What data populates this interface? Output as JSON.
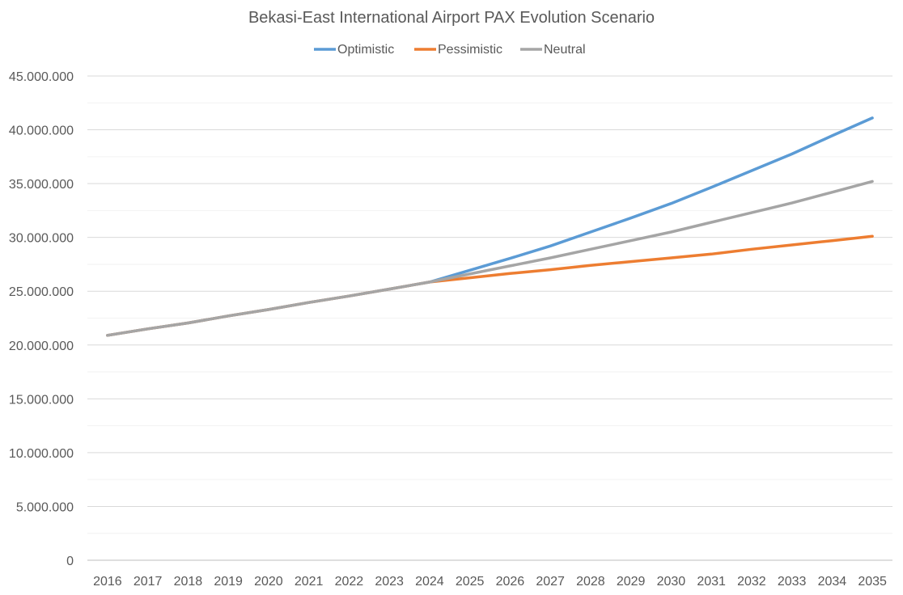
{
  "chart_data": {
    "type": "line",
    "title": "Bekasi-East International Airport PAX Evolution Scenario",
    "xlabel": "",
    "ylabel": "",
    "categories": [
      "2016",
      "2017",
      "2018",
      "2019",
      "2020",
      "2021",
      "2022",
      "2023",
      "2024",
      "2025",
      "2026",
      "2027",
      "2028",
      "2029",
      "2030",
      "2031",
      "2032",
      "2033",
      "2034",
      "2035"
    ],
    "ylim": [
      0,
      45000000
    ],
    "y_ticks": [
      0,
      5000000,
      10000000,
      15000000,
      20000000,
      25000000,
      30000000,
      35000000,
      40000000,
      45000000
    ],
    "y_tick_labels": [
      "0",
      "5.000.000",
      "10.000.000",
      "15.000.000",
      "20.000.000",
      "25.000.000",
      "30.000.000",
      "35.000.000",
      "40.000.000",
      "45.000.000"
    ],
    "grid": true,
    "legend_position": "top-center",
    "series": [
      {
        "name": "Optimistic",
        "color": "#5B9BD5",
        "values": [
          20900000,
          21500000,
          22050000,
          22700000,
          23300000,
          23950000,
          24550000,
          25200000,
          25850000,
          26950000,
          28050000,
          29200000,
          30500000,
          31800000,
          33150000,
          34650000,
          36200000,
          37750000,
          39450000,
          41100000
        ]
      },
      {
        "name": "Pessimistic",
        "color": "#ED7D31",
        "values": [
          20900000,
          21500000,
          22050000,
          22700000,
          23300000,
          23950000,
          24550000,
          25200000,
          25850000,
          26250000,
          26650000,
          27000000,
          27400000,
          27750000,
          28100000,
          28450000,
          28900000,
          29300000,
          29700000,
          30100000
        ]
      },
      {
        "name": "Neutral",
        "color": "#A5A5A5",
        "values": [
          20900000,
          21500000,
          22050000,
          22700000,
          23300000,
          23950000,
          24550000,
          25200000,
          25850000,
          26600000,
          27350000,
          28100000,
          28900000,
          29700000,
          30500000,
          31400000,
          32300000,
          33200000,
          34200000,
          35200000
        ]
      }
    ]
  }
}
